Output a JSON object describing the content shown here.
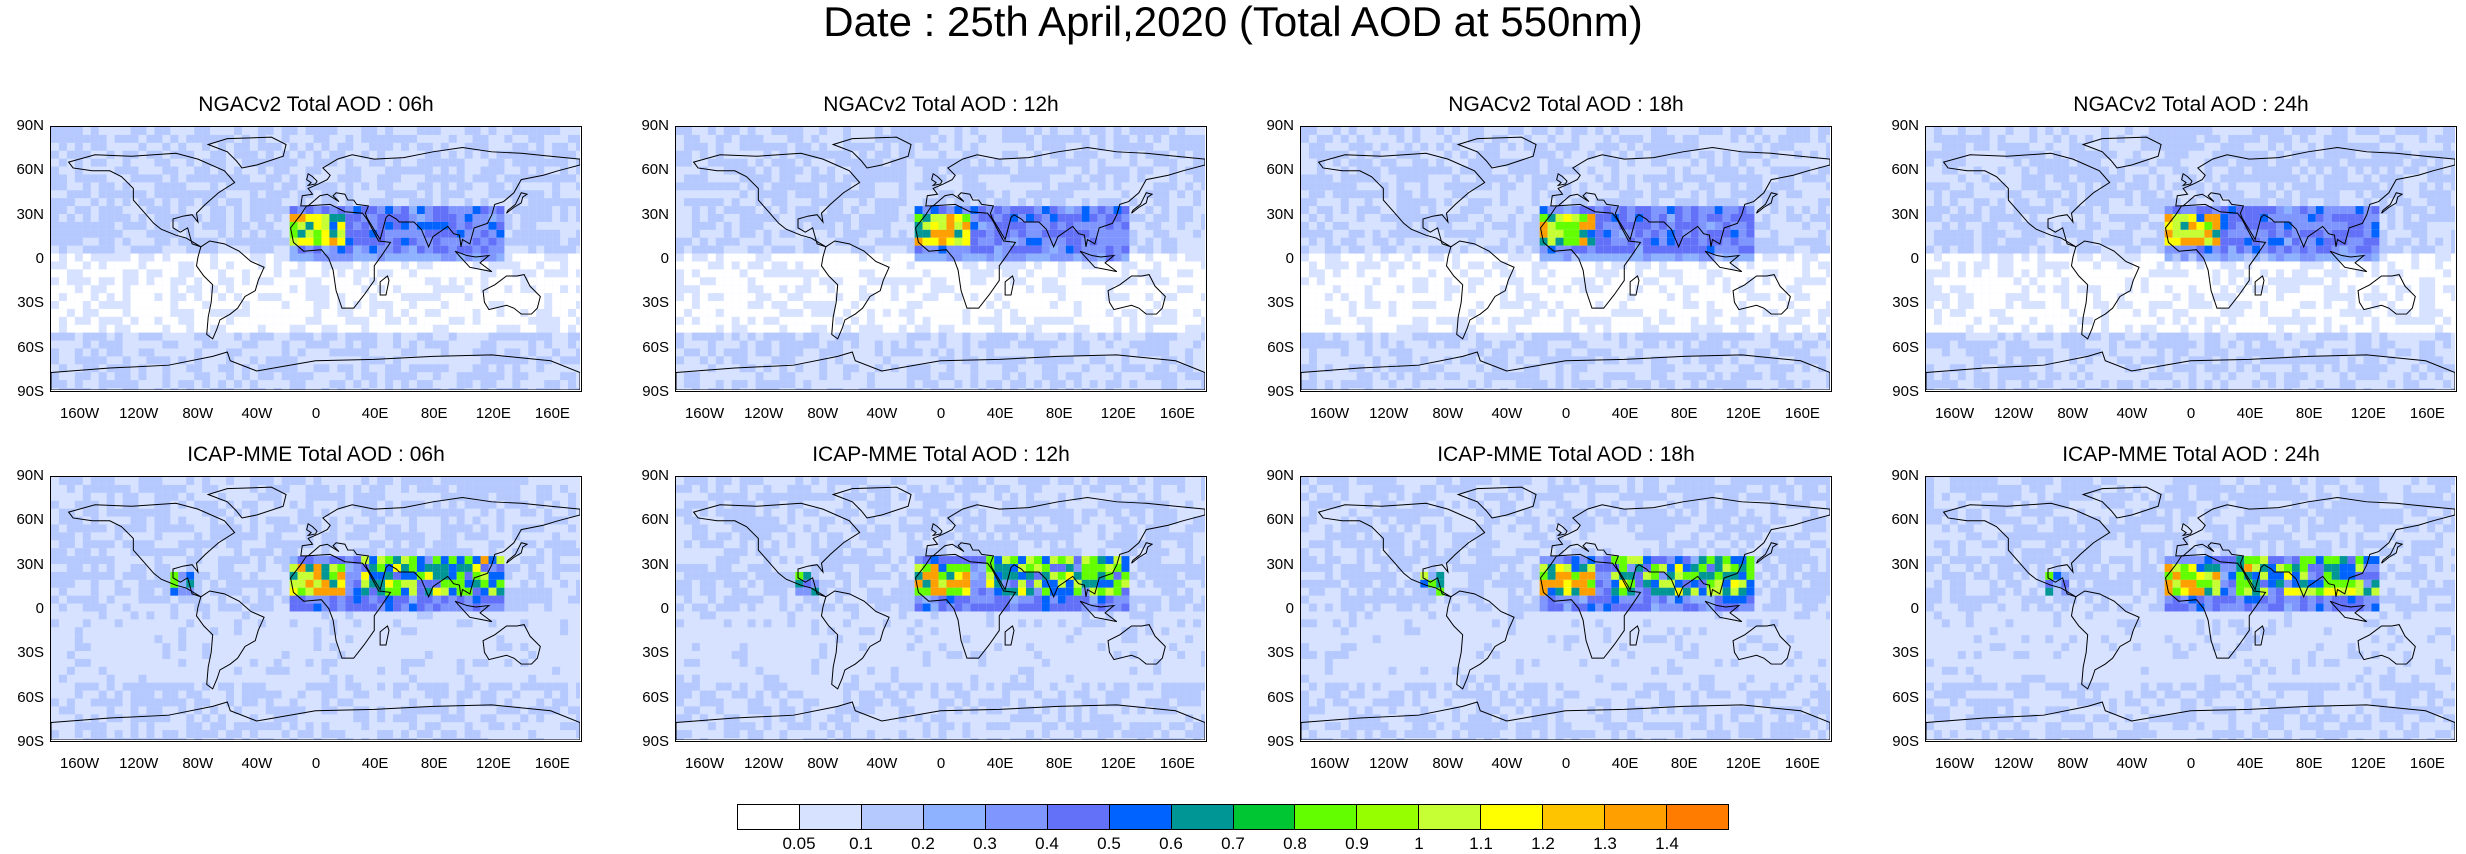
{
  "title": "Date : 25th April,2020 (Total AOD at 550nm)",
  "lat_ticks": [
    "90N",
    "60N",
    "30N",
    "0",
    "30S",
    "60S",
    "90S"
  ],
  "lon_ticks": [
    "160W",
    "120W",
    "80W",
    "40W",
    "0",
    "40E",
    "80E",
    "120E",
    "160E"
  ],
  "panels": [
    {
      "title": "NGACv2 Total AOD : 06h",
      "model": "NGACv2",
      "hour": "06h"
    },
    {
      "title": "NGACv2 Total AOD : 12h",
      "model": "NGACv2",
      "hour": "12h"
    },
    {
      "title": "NGACv2 Total AOD : 18h",
      "model": "NGACv2",
      "hour": "18h"
    },
    {
      "title": "NGACv2 Total AOD : 24h",
      "model": "NGACv2",
      "hour": "24h"
    },
    {
      "title": "ICAP-MME Total AOD : 06h",
      "model": "ICAP-MME",
      "hour": "06h"
    },
    {
      "title": "ICAP-MME Total AOD : 12h",
      "model": "ICAP-MME",
      "hour": "12h"
    },
    {
      "title": "ICAP-MME Total AOD : 18h",
      "model": "ICAP-MME",
      "hour": "18h"
    },
    {
      "title": "ICAP-MME Total AOD : 24h",
      "model": "ICAP-MME",
      "hour": "24h"
    }
  ],
  "colorbar": {
    "labels": [
      "0.05",
      "0.1",
      "0.2",
      "0.3",
      "0.4",
      "0.5",
      "0.6",
      "0.7",
      "0.8",
      "0.9",
      "1",
      "1.1",
      "1.2",
      "1.3",
      "1.4"
    ],
    "colors": [
      "#ffffff",
      "#d6e2ff",
      "#b5c9ff",
      "#8eb2ff",
      "#7f96ff",
      "#6370f8",
      "#0063ff",
      "#009696",
      "#00c633",
      "#63ff00",
      "#96ff00",
      "#c6ff33",
      "#ffff00",
      "#ffc400",
      "#ffa000",
      "#ff7c00",
      "#ff1900"
    ]
  }
}
